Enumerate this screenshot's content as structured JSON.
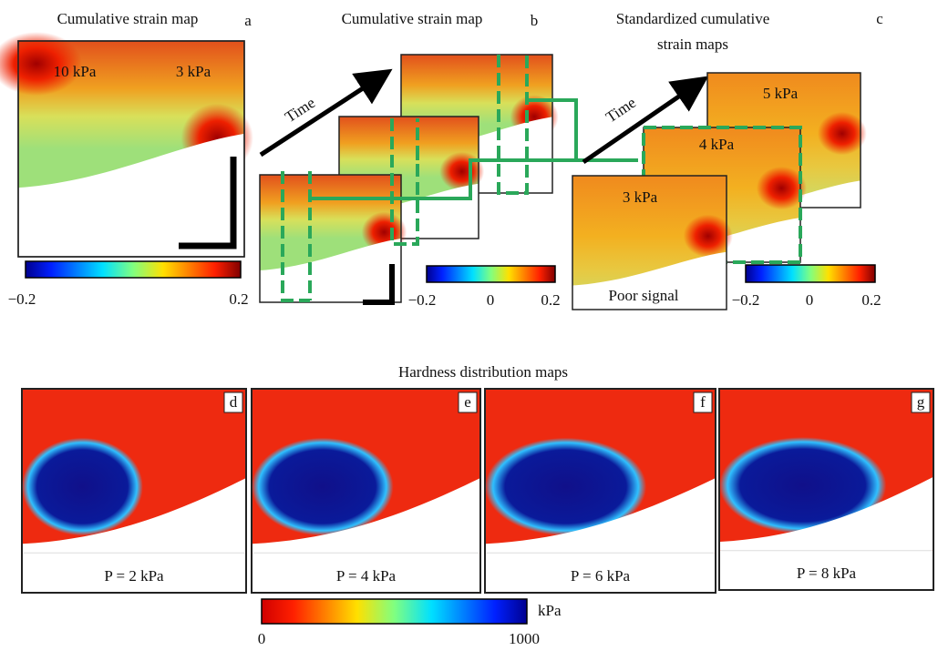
{
  "panel_a": {
    "title": "Cumulative strain map",
    "letter": "a",
    "labels": [
      "10 kPa",
      "3 kPa"
    ],
    "colorbar_ticks": [
      "−0.2",
      "0.2"
    ]
  },
  "panel_b": {
    "title": "Cumulative strain map",
    "letter": "b",
    "arrow_label": "Time",
    "colorbar_ticks": [
      "−0.2",
      "0",
      "0.2"
    ]
  },
  "panel_c": {
    "title": [
      "Standardized cumulative",
      "strain maps"
    ],
    "letter": "c",
    "arrow_label": "Time",
    "labels": [
      "5 kPa",
      "4 kPa",
      "3 kPa"
    ],
    "note": "Poor signal",
    "colorbar_ticks": [
      "−0.2",
      "0",
      "0.2"
    ]
  },
  "hardness": {
    "title": "Hardness distribution maps",
    "panels": [
      {
        "letter": "d",
        "caption": "P = 2 kPa"
      },
      {
        "letter": "e",
        "caption": "P = 4 kPa"
      },
      {
        "letter": "f",
        "caption": "P = 6 kPa"
      },
      {
        "letter": "g",
        "caption": "P = 8 kPa"
      }
    ],
    "colorbar_unit": "kPa",
    "colorbar_ticks": [
      "0",
      "1000"
    ]
  }
}
